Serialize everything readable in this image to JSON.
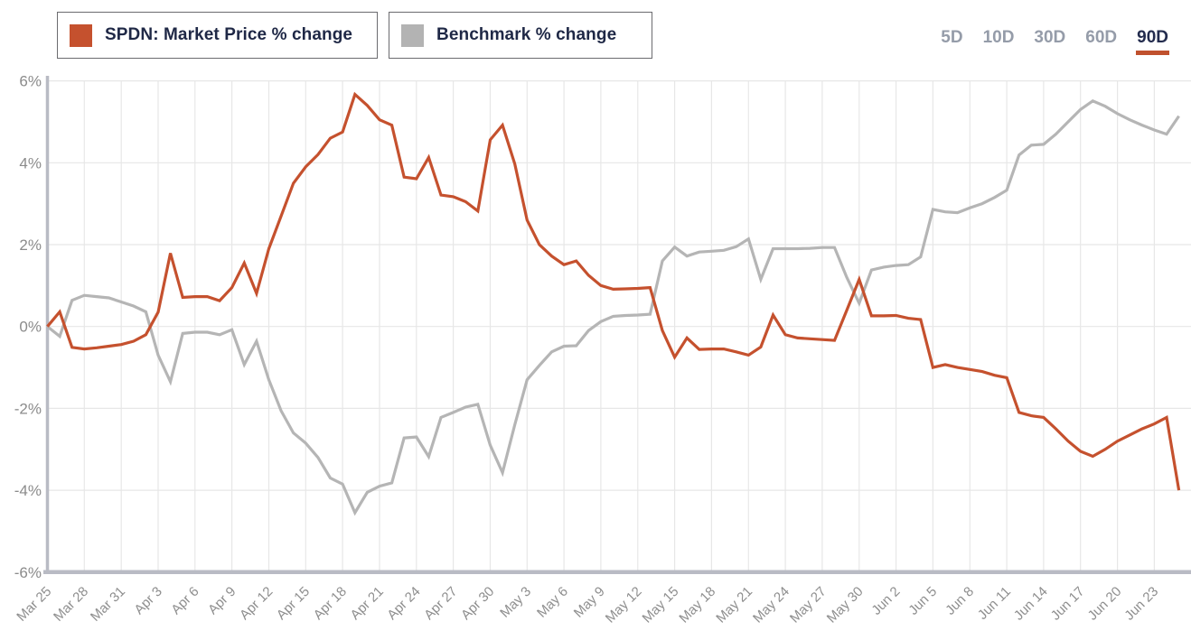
{
  "legend": {
    "items": [
      {
        "label": "SPDN: Market Price % change",
        "color": "#c5512e"
      },
      {
        "label": "Benchmark % change",
        "color": "#b3b3b3"
      }
    ]
  },
  "range_selector": {
    "options": [
      {
        "label": "5D",
        "active": false
      },
      {
        "label": "10D",
        "active": false
      },
      {
        "label": "30D",
        "active": false
      },
      {
        "label": "60D",
        "active": false
      },
      {
        "label": "90D",
        "active": true
      }
    ],
    "underline_color": "#c0512e",
    "inactive_color": "#959ca9",
    "active_color": "#232c4e"
  },
  "chart_data": {
    "type": "line",
    "title": "",
    "xlabel": "",
    "ylabel": "",
    "ylim": [
      -6,
      6
    ],
    "grid": true,
    "legend_position": "top-left",
    "y_ticks": [
      6,
      4,
      2,
      0,
      -2,
      -4,
      -6
    ],
    "y_tick_labels": [
      "6%",
      "4%",
      "2%",
      "0%",
      "-2%",
      "-4%",
      "-6%"
    ],
    "x_tick_labels": [
      "Mar 25",
      "Mar 28",
      "Mar 31",
      "Apr 3",
      "Apr 6",
      "Apr 9",
      "Apr 12",
      "Apr 15",
      "Apr 18",
      "Apr 21",
      "Apr 24",
      "Apr 27",
      "Apr 30",
      "May 3",
      "May 6",
      "May 9",
      "May 12",
      "May 15",
      "May 18",
      "May 21",
      "May 24",
      "May 27",
      "May 30",
      "Jun 2",
      "Jun 5",
      "Jun 8",
      "Jun 11",
      "Jun 14",
      "Jun 17",
      "Jun 20",
      "Jun 23"
    ],
    "days_per_tick": 3,
    "n_points": 93,
    "series": [
      {
        "name": "SPDN: Market Price % change",
        "color": "#c5512e",
        "values": [
          0,
          0.36,
          -0.51,
          -0.55,
          -0.52,
          -0.48,
          -0.44,
          -0.36,
          -0.2,
          0.35,
          1.79,
          0.71,
          0.73,
          0.73,
          0.63,
          0.95,
          1.55,
          0.81,
          1.9,
          2.7,
          3.5,
          3.9,
          4.2,
          4.6,
          4.75,
          5.67,
          5.4,
          5.05,
          4.92,
          3.65,
          3.61,
          4.13,
          3.21,
          3.17,
          3.05,
          2.82,
          4.56,
          4.92,
          3.97,
          2.6,
          2.0,
          1.72,
          1.51,
          1.6,
          1.25,
          1.0,
          0.91,
          0.92,
          0.93,
          0.95,
          -0.1,
          -0.75,
          -0.28,
          -0.56,
          -0.55,
          -0.55,
          -0.62,
          -0.7,
          -0.5,
          0.28,
          -0.2,
          -0.28,
          -0.3,
          -0.32,
          -0.34,
          0.4,
          1.15,
          0.26,
          0.26,
          0.27,
          0.2,
          0.17,
          -1.0,
          -0.93,
          -1.0,
          -1.05,
          -1.1,
          -1.19,
          -1.25,
          -2.1,
          -2.18,
          -2.22,
          -2.5,
          -2.8,
          -3.05,
          -3.17,
          -3.0,
          -2.8,
          -2.65,
          -2.5,
          -2.38,
          -2.22,
          -4.0
        ]
      },
      {
        "name": "Benchmark % change",
        "color": "#b5b5b5",
        "values": [
          0,
          -0.24,
          0.64,
          0.76,
          0.73,
          0.7,
          0.6,
          0.5,
          0.36,
          -0.7,
          -1.35,
          -0.17,
          -0.14,
          -0.14,
          -0.2,
          -0.08,
          -0.93,
          -0.36,
          -1.3,
          -2.06,
          -2.6,
          -2.85,
          -3.2,
          -3.7,
          -3.85,
          -4.55,
          -4.05,
          -3.9,
          -3.82,
          -2.72,
          -2.7,
          -3.18,
          -2.22,
          -2.1,
          -1.97,
          -1.9,
          -2.9,
          -3.57,
          -2.4,
          -1.3,
          -0.95,
          -0.62,
          -0.48,
          -0.47,
          -0.1,
          0.12,
          0.25,
          0.27,
          0.28,
          0.3,
          1.6,
          1.94,
          1.72,
          1.82,
          1.84,
          1.86,
          1.95,
          2.14,
          1.15,
          1.9,
          1.9,
          1.9,
          1.91,
          1.93,
          1.93,
          1.2,
          0.57,
          1.38,
          1.45,
          1.49,
          1.51,
          1.7,
          2.86,
          2.8,
          2.78,
          2.9,
          3.0,
          3.15,
          3.33,
          4.19,
          4.43,
          4.45,
          4.7,
          5.0,
          5.3,
          5.51,
          5.38,
          5.2,
          5.05,
          4.92,
          4.8,
          4.7,
          5.14
        ]
      }
    ]
  }
}
